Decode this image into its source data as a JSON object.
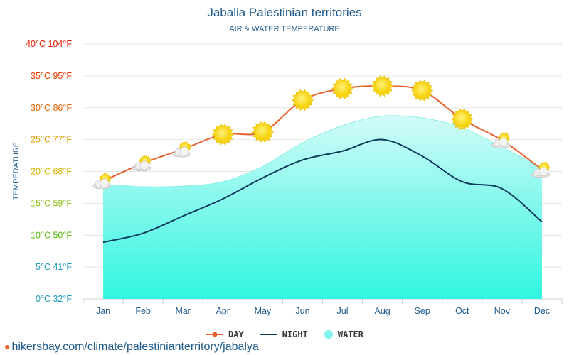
{
  "chart_data": {
    "type": "line",
    "title": "Jabalia Palestinian territories",
    "subtitle": "AIR & WATER TEMPERATURE",
    "ylabel": "TEMPERATURE",
    "categories": [
      "Jan",
      "Feb",
      "Mar",
      "Apr",
      "May",
      "Jun",
      "Jul",
      "Aug",
      "Sep",
      "Oct",
      "Nov",
      "Dec"
    ],
    "ylim": [
      0,
      40
    ],
    "y_ticks": [
      {
        "c": 0,
        "label": "0°C 32°F",
        "color": "#1a9bb8"
      },
      {
        "c": 5,
        "label": "5°C 41°F",
        "color": "#1a9bb8"
      },
      {
        "c": 10,
        "label": "10°C 50°F",
        "color": "#5bb80e"
      },
      {
        "c": 15,
        "label": "15°C 59°F",
        "color": "#8cc417"
      },
      {
        "c": 20,
        "label": "20°C 68°F",
        "color": "#d8b200"
      },
      {
        "c": 25,
        "label": "25°C 77°F",
        "color": "#e49a00"
      },
      {
        "c": 30,
        "label": "30°C 86°F",
        "color": "#e46400"
      },
      {
        "c": 35,
        "label": "35°C 95°F",
        "color": "#e43a00"
      },
      {
        "c": 40,
        "label": "40°C 104°F",
        "color": "#e41e00"
      }
    ],
    "series": [
      {
        "name": "DAY",
        "color": "#e8612c",
        "values": [
          18.5,
          21.3,
          23.5,
          25.8,
          26.2,
          31.2,
          33.0,
          33.4,
          32.7,
          28.2,
          24.9,
          20.3
        ]
      },
      {
        "name": "NIGHT",
        "color": "#0e3a5e",
        "values": [
          8.9,
          10.3,
          13.0,
          15.7,
          19.0,
          21.8,
          23.2,
          25.0,
          22.4,
          18.4,
          17.3,
          12.1
        ]
      },
      {
        "name": "WATER",
        "color": "#7ff3ee",
        "values": [
          18.0,
          17.6,
          17.7,
          18.4,
          20.8,
          24.5,
          27.2,
          28.7,
          28.4,
          26.9,
          23.8,
          20.6
        ]
      }
    ],
    "day_icons": [
      "sun-cloud",
      "sun-cloud",
      "sun-cloud",
      "sun",
      "sun",
      "sun",
      "sun",
      "sun",
      "sun",
      "sun",
      "sun-cloud",
      "sun-cloud"
    ],
    "grid": true,
    "legend_position": "bottom"
  },
  "source": "hikersbay.com/climate/palestinianterritory/jabalya"
}
